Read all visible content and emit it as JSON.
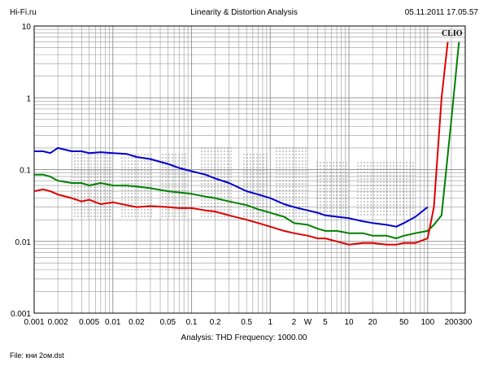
{
  "header": {
    "site": "Hi-Fi.ru",
    "title": "Linearity & Distortion Analysis",
    "datetime": "05.11.2011 17.05.57"
  },
  "footer": {
    "analysis": "Analysis: THD   Frequency: 1000.00",
    "file": "File: кни 2ом.dst"
  },
  "watermark": "CLIO",
  "colors": {
    "blue": "#0000cc",
    "green": "#008000",
    "red": "#dd0000",
    "grid": "#999999"
  },
  "chart_data": {
    "type": "line",
    "x_scale": "log",
    "y_scale": "log",
    "xlim": [
      0.001,
      300
    ],
    "ylim": [
      0.001,
      10
    ],
    "x_ticks": [
      {
        "v": 0.001,
        "label": "0.001"
      },
      {
        "v": 0.002,
        "label": "0.002"
      },
      {
        "v": 0.005,
        "label": "0.005"
      },
      {
        "v": 0.01,
        "label": "0.01"
      },
      {
        "v": 0.02,
        "label": "0.02"
      },
      {
        "v": 0.05,
        "label": "0.05"
      },
      {
        "v": 0.1,
        "label": "0.1"
      },
      {
        "v": 0.2,
        "label": "0.2"
      },
      {
        "v": 0.5,
        "label": "0.5"
      },
      {
        "v": 1,
        "label": "1"
      },
      {
        "v": 2,
        "label": "2"
      },
      {
        "v": 3,
        "label": "W"
      },
      {
        "v": 5,
        "label": "5"
      },
      {
        "v": 10,
        "label": "10"
      },
      {
        "v": 20,
        "label": "20"
      },
      {
        "v": 50,
        "label": "50"
      },
      {
        "v": 100,
        "label": "100"
      },
      {
        "v": 200,
        "label": "200"
      },
      {
        "v": 300,
        "label": "300"
      }
    ],
    "y_ticks": [
      {
        "v": 10,
        "label": "10"
      },
      {
        "v": 1,
        "label": "1"
      },
      {
        "v": 0.1,
        "label": "0.1"
      },
      {
        "v": 0.01,
        "label": "0.01"
      },
      {
        "v": 0.001,
        "label": "0.001"
      }
    ],
    "grid": true,
    "series": [
      {
        "color": "#0000cc",
        "x": [
          0.001,
          0.0013,
          0.0016,
          0.002,
          0.003,
          0.004,
          0.005,
          0.007,
          0.01,
          0.015,
          0.02,
          0.03,
          0.05,
          0.07,
          0.1,
          0.15,
          0.2,
          0.3,
          0.5,
          0.7,
          1,
          1.5,
          2,
          3,
          4,
          5,
          7,
          10,
          15,
          20,
          30,
          40,
          50,
          70,
          100
        ],
        "y": [
          0.18,
          0.18,
          0.17,
          0.2,
          0.18,
          0.18,
          0.17,
          0.175,
          0.17,
          0.165,
          0.15,
          0.14,
          0.12,
          0.105,
          0.095,
          0.085,
          0.075,
          0.065,
          0.05,
          0.045,
          0.04,
          0.033,
          0.03,
          0.027,
          0.025,
          0.023,
          0.022,
          0.021,
          0.019,
          0.018,
          0.017,
          0.016,
          0.018,
          0.022,
          0.03
        ]
      },
      {
        "color": "#008000",
        "x": [
          0.001,
          0.0013,
          0.0016,
          0.002,
          0.003,
          0.004,
          0.005,
          0.007,
          0.01,
          0.015,
          0.02,
          0.03,
          0.05,
          0.07,
          0.1,
          0.15,
          0.2,
          0.3,
          0.5,
          0.7,
          1,
          1.5,
          2,
          3,
          4,
          5,
          7,
          10,
          15,
          20,
          30,
          40,
          50,
          70,
          100,
          120,
          150,
          200,
          250
        ],
        "y": [
          0.085,
          0.085,
          0.08,
          0.07,
          0.065,
          0.065,
          0.06,
          0.065,
          0.06,
          0.06,
          0.058,
          0.055,
          0.05,
          0.048,
          0.046,
          0.042,
          0.04,
          0.036,
          0.032,
          0.028,
          0.025,
          0.022,
          0.018,
          0.017,
          0.015,
          0.014,
          0.014,
          0.013,
          0.013,
          0.012,
          0.012,
          0.011,
          0.012,
          0.013,
          0.014,
          0.017,
          0.023,
          0.5,
          6
        ]
      },
      {
        "color": "#dd0000",
        "x": [
          0.001,
          0.0013,
          0.0016,
          0.002,
          0.003,
          0.004,
          0.005,
          0.007,
          0.01,
          0.015,
          0.02,
          0.03,
          0.05,
          0.07,
          0.1,
          0.15,
          0.2,
          0.3,
          0.5,
          0.7,
          1,
          1.5,
          2,
          3,
          4,
          5,
          7,
          10,
          15,
          20,
          30,
          40,
          50,
          70,
          100,
          120,
          150,
          180
        ],
        "y": [
          0.05,
          0.053,
          0.05,
          0.045,
          0.04,
          0.036,
          0.038,
          0.033,
          0.035,
          0.032,
          0.03,
          0.031,
          0.03,
          0.029,
          0.029,
          0.027,
          0.026,
          0.023,
          0.02,
          0.018,
          0.016,
          0.014,
          0.013,
          0.012,
          0.011,
          0.011,
          0.01,
          0.009,
          0.0095,
          0.0095,
          0.009,
          0.009,
          0.0095,
          0.0095,
          0.011,
          0.03,
          1,
          6
        ]
      }
    ]
  }
}
